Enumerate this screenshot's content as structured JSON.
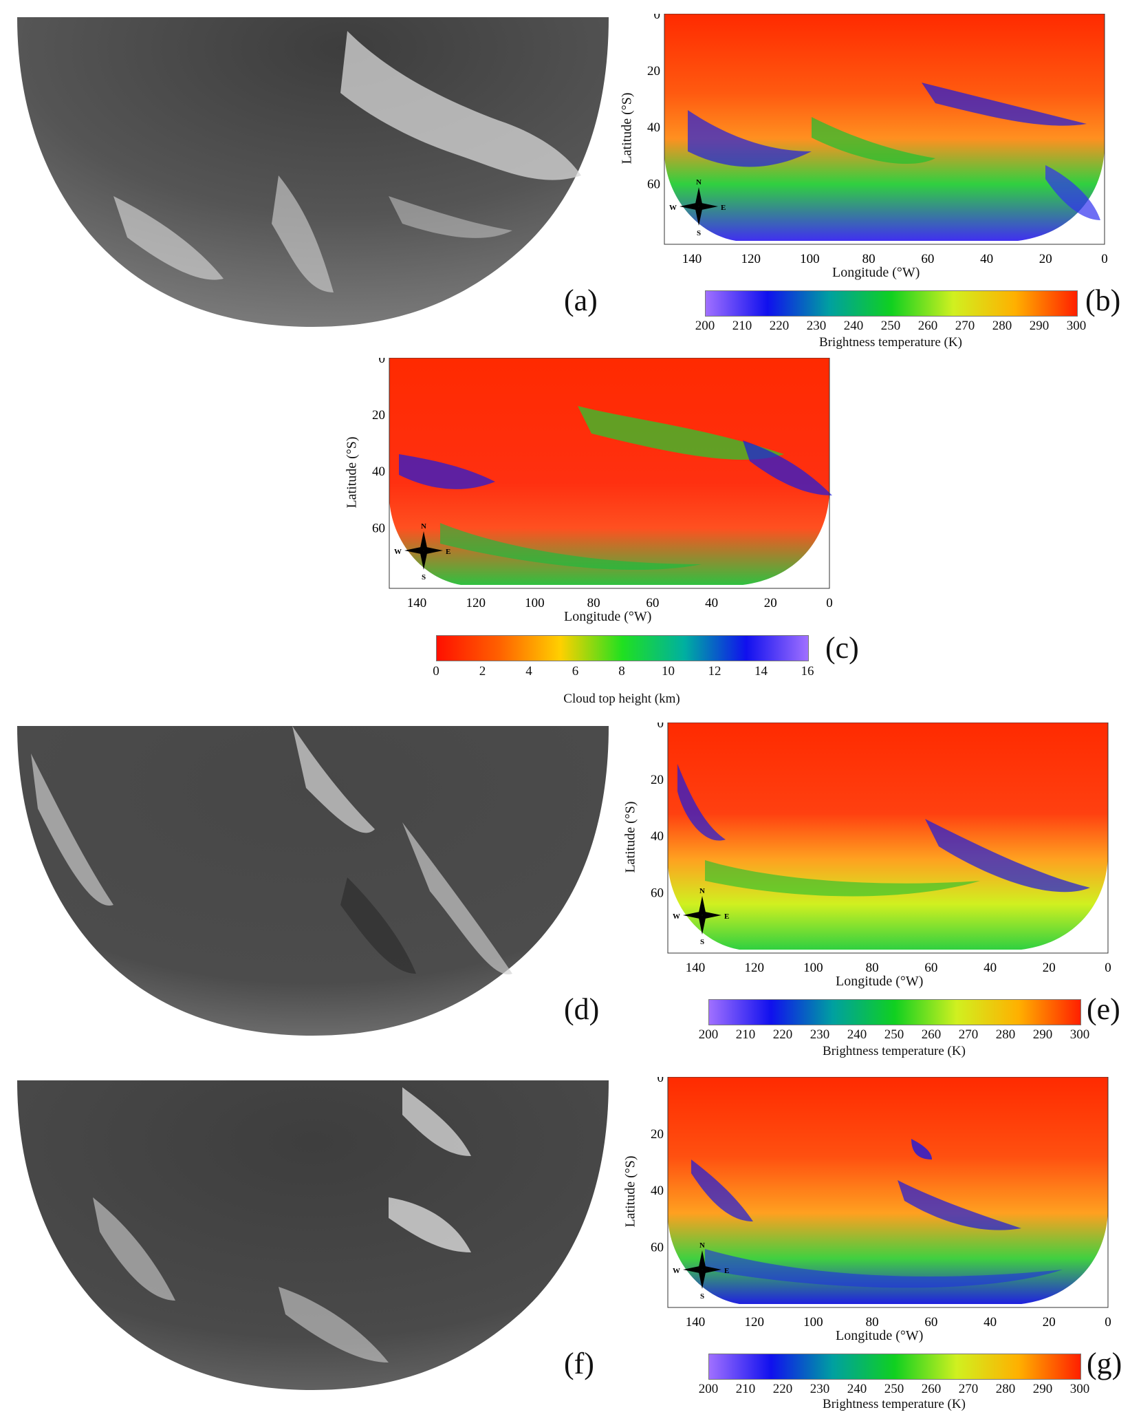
{
  "panels": [
    {
      "id": "a",
      "letter": "(a)",
      "kind": "sat",
      "shade": "#5a5a5a"
    },
    {
      "id": "b",
      "letter": "(b)",
      "kind": "map",
      "scheme": "temp"
    },
    {
      "id": "c",
      "letter": "(c)",
      "kind": "map",
      "scheme": "height"
    },
    {
      "id": "d",
      "letter": "(d)",
      "kind": "sat",
      "shade": "#4c4c4c"
    },
    {
      "id": "e",
      "letter": "(e)",
      "kind": "map",
      "scheme": "temp2"
    },
    {
      "id": "f",
      "letter": "(f)",
      "kind": "sat",
      "shade": "#4a4a4a"
    },
    {
      "id": "g",
      "letter": "(g)",
      "kind": "map",
      "scheme": "temp"
    }
  ],
  "map_axes": {
    "x_title": "Longitude (°W)",
    "y_title": "Latitude (°S)",
    "x_ticks": [
      "140",
      "120",
      "100",
      "80",
      "60",
      "40",
      "20",
      "0"
    ],
    "y_ticks": [
      "0",
      "20",
      "40",
      "60"
    ],
    "compass": {
      "n": "N",
      "s": "S",
      "e": "E",
      "w": "W"
    }
  },
  "colorbars": {
    "temperature": {
      "title": "Brightness temperature (K)",
      "ticks": [
        "200",
        "210",
        "220",
        "230",
        "240",
        "250",
        "260",
        "270",
        "280",
        "290",
        "300"
      ],
      "colors": [
        "#a070ff",
        "#1010ee",
        "#00a0a0",
        "#10d020",
        "#d0f020",
        "#ffb000",
        "#ff2000"
      ]
    },
    "height": {
      "title": "Cloud top height (km)",
      "ticks": [
        "0",
        "2",
        "4",
        "6",
        "8",
        "10",
        "12",
        "14",
        "16"
      ],
      "colors": [
        "#ff1000",
        "#ff6000",
        "#ffd000",
        "#20e020",
        "#00b0a0",
        "#1010ee",
        "#a070ff"
      ]
    }
  }
}
